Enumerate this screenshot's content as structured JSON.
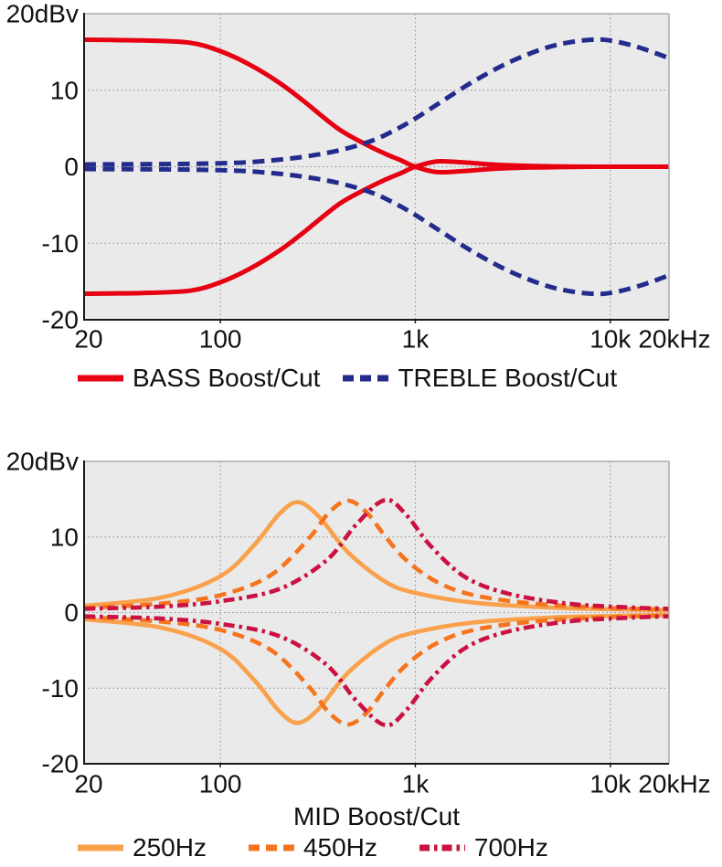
{
  "figure": {
    "description": "Tone control frequency response curves (EQ boost/cut vs frequency)"
  },
  "colors": {
    "bass_red": "#E60012",
    "treble_navy": "#232C8C",
    "mid_250_orange": "#F9A14B",
    "mid_450_orange": "#F5741D",
    "mid_700_crimson": "#CB1141",
    "plot_background": "#EAEAEA",
    "gridline": "#8C8C8C",
    "spine_dark": "#1A1A1A",
    "spine_light": "#ABABAB",
    "text": "#111111"
  },
  "chart_data": [
    {
      "type": "line",
      "title": "",
      "xlabel": "",
      "ylabel": "dBv",
      "x_scale": "log",
      "xlim": [
        20,
        20000
      ],
      "ylim": [
        -20,
        20
      ],
      "grid": true,
      "y_ticks": [
        {
          "value": 20,
          "label": "20dBv"
        },
        {
          "value": 10,
          "label": "10"
        },
        {
          "value": 0,
          "label": "0"
        },
        {
          "value": -10,
          "label": "-10"
        },
        {
          "value": -20,
          "label": "-20"
        }
      ],
      "x_ticks": [
        {
          "value": 20,
          "label": "20"
        },
        {
          "value": 100,
          "label": "100"
        },
        {
          "value": 1000,
          "label": "1k"
        },
        {
          "value": 10000,
          "label": "10k"
        },
        {
          "value": 20000,
          "label": "20kHz"
        }
      ],
      "y_gridlines": [
        10,
        0,
        -10
      ],
      "x_gridlines": [
        100,
        1000,
        10000
      ],
      "legend": [
        {
          "label": "BASS Boost/Cut",
          "color": "#E60012",
          "line_style": "solid"
        },
        {
          "label": "TREBLE Boost/Cut",
          "color": "#232C8C",
          "line_style": "dashed"
        }
      ],
      "series": [
        {
          "name": "bass-boost",
          "color": "#E60012",
          "line_style": "solid",
          "width": 5,
          "points": [
            [
              20,
              16.6
            ],
            [
              40,
              16.5
            ],
            [
              70,
              16.2
            ],
            [
              100,
              15.1
            ],
            [
              140,
              13.4
            ],
            [
              200,
              11.0
            ],
            [
              270,
              8.5
            ],
            [
              400,
              5.0
            ],
            [
              550,
              3.0
            ],
            [
              700,
              1.7
            ],
            [
              850,
              0.8
            ],
            [
              1000,
              0
            ],
            [
              1300,
              -0.7
            ],
            [
              1800,
              -0.55
            ],
            [
              2600,
              -0.25
            ],
            [
              4000,
              -0.1
            ],
            [
              8000,
              0
            ],
            [
              20000,
              0
            ]
          ]
        },
        {
          "name": "bass-cut",
          "color": "#E60012",
          "line_style": "solid",
          "width": 5,
          "points": [
            [
              20,
              -16.6
            ],
            [
              40,
              -16.5
            ],
            [
              70,
              -16.2
            ],
            [
              100,
              -15.1
            ],
            [
              140,
              -13.4
            ],
            [
              200,
              -11.0
            ],
            [
              270,
              -8.5
            ],
            [
              400,
              -5.0
            ],
            [
              550,
              -3.0
            ],
            [
              700,
              -1.7
            ],
            [
              850,
              -0.8
            ],
            [
              1000,
              0
            ],
            [
              1300,
              0.7
            ],
            [
              1800,
              0.55
            ],
            [
              2600,
              0.25
            ],
            [
              4000,
              0.1
            ],
            [
              8000,
              0
            ],
            [
              20000,
              0
            ]
          ]
        },
        {
          "name": "treble-boost",
          "color": "#232C8C",
          "line_style": "dashed",
          "width": 5,
          "points": [
            [
              20,
              0.3
            ],
            [
              50,
              0.35
            ],
            [
              100,
              0.45
            ],
            [
              150,
              0.65
            ],
            [
              250,
              1.2
            ],
            [
              400,
              2.1
            ],
            [
              600,
              3.4
            ],
            [
              800,
              4.9
            ],
            [
              1000,
              6.3
            ],
            [
              1400,
              8.7
            ],
            [
              2000,
              11.2
            ],
            [
              3000,
              13.6
            ],
            [
              4500,
              15.4
            ],
            [
              6000,
              16.2
            ],
            [
              8000,
              16.6
            ],
            [
              10000,
              16.5
            ],
            [
              14000,
              15.6
            ],
            [
              20000,
              14.2
            ]
          ]
        },
        {
          "name": "treble-cut",
          "color": "#232C8C",
          "line_style": "dashed",
          "width": 5,
          "points": [
            [
              20,
              -0.3
            ],
            [
              50,
              -0.35
            ],
            [
              100,
              -0.45
            ],
            [
              150,
              -0.65
            ],
            [
              250,
              -1.2
            ],
            [
              400,
              -2.1
            ],
            [
              600,
              -3.4
            ],
            [
              800,
              -4.9
            ],
            [
              1000,
              -6.3
            ],
            [
              1400,
              -8.7
            ],
            [
              2000,
              -11.2
            ],
            [
              3000,
              -13.6
            ],
            [
              4500,
              -15.4
            ],
            [
              6000,
              -16.2
            ],
            [
              8000,
              -16.6
            ],
            [
              10000,
              -16.5
            ],
            [
              14000,
              -15.6
            ],
            [
              20000,
              -14.2
            ]
          ]
        }
      ]
    },
    {
      "type": "line",
      "title": "",
      "xlabel": "MID Boost/Cut",
      "ylabel": "dBv",
      "x_scale": "log",
      "xlim": [
        20,
        20000
      ],
      "ylim": [
        -20,
        20
      ],
      "grid": true,
      "y_ticks": [
        {
          "value": 20,
          "label": "20dBv"
        },
        {
          "value": 10,
          "label": "10"
        },
        {
          "value": 0,
          "label": "0"
        },
        {
          "value": -10,
          "label": "-10"
        },
        {
          "value": -20,
          "label": "-20"
        }
      ],
      "x_ticks": [
        {
          "value": 20,
          "label": "20"
        },
        {
          "value": 100,
          "label": "100"
        },
        {
          "value": 1000,
          "label": "1k"
        },
        {
          "value": 10000,
          "label": "10k"
        },
        {
          "value": 20000,
          "label": "20kHz"
        }
      ],
      "y_gridlines": [
        10,
        0,
        -10
      ],
      "x_gridlines": [
        100,
        1000,
        10000
      ],
      "legend": [
        {
          "label": "250Hz",
          "color": "#F9A14B",
          "line_style": "solid"
        },
        {
          "label": "450Hz",
          "color": "#F5741D",
          "line_style": "dashed"
        },
        {
          "label": "700Hz",
          "color": "#CB1141",
          "line_style": "dashdot"
        }
      ],
      "series": [
        {
          "name": "mid-250-boost",
          "color": "#F9A14B",
          "line_style": "solid",
          "width": 4.6,
          "points": [
            [
              20,
              0.9
            ],
            [
              50,
              2.0
            ],
            [
              100,
              4.8
            ],
            [
              150,
              9.0
            ],
            [
              200,
              13.0
            ],
            [
              250,
              14.6
            ],
            [
              320,
              12.7
            ],
            [
              450,
              8.0
            ],
            [
              700,
              4.1
            ],
            [
              1000,
              2.6
            ],
            [
              2000,
              1.3
            ],
            [
              5000,
              0.65
            ],
            [
              10000,
              0.45
            ],
            [
              20000,
              0.3
            ]
          ]
        },
        {
          "name": "mid-250-cut",
          "color": "#F9A14B",
          "line_style": "solid",
          "width": 4.6,
          "points": [
            [
              20,
              -0.9
            ],
            [
              50,
              -2.0
            ],
            [
              100,
              -4.8
            ],
            [
              150,
              -9.0
            ],
            [
              200,
              -13.0
            ],
            [
              250,
              -14.6
            ],
            [
              320,
              -12.7
            ],
            [
              450,
              -8.0
            ],
            [
              700,
              -4.1
            ],
            [
              1000,
              -2.6
            ],
            [
              2000,
              -1.3
            ],
            [
              5000,
              -0.65
            ],
            [
              10000,
              -0.45
            ],
            [
              20000,
              -0.3
            ]
          ]
        },
        {
          "name": "mid-450-boost",
          "color": "#F5741D",
          "line_style": "dashed",
          "width": 4.6,
          "points": [
            [
              20,
              0.6
            ],
            [
              50,
              1.2
            ],
            [
              100,
              2.3
            ],
            [
              180,
              4.9
            ],
            [
              280,
              9.6
            ],
            [
              360,
              13.2
            ],
            [
              450,
              14.8
            ],
            [
              560,
              13.3
            ],
            [
              700,
              10.1
            ],
            [
              900,
              6.9
            ],
            [
              1300,
              4.0
            ],
            [
              2000,
              2.3
            ],
            [
              4000,
              1.2
            ],
            [
              10000,
              0.6
            ],
            [
              20000,
              0.4
            ]
          ]
        },
        {
          "name": "mid-450-cut",
          "color": "#F5741D",
          "line_style": "dashed",
          "width": 4.6,
          "points": [
            [
              20,
              -0.6
            ],
            [
              50,
              -1.2
            ],
            [
              100,
              -2.3
            ],
            [
              180,
              -4.9
            ],
            [
              280,
              -9.6
            ],
            [
              360,
              -13.2
            ],
            [
              450,
              -14.8
            ],
            [
              560,
              -13.3
            ],
            [
              700,
              -10.1
            ],
            [
              900,
              -6.9
            ],
            [
              1300,
              -4.0
            ],
            [
              2000,
              -2.3
            ],
            [
              4000,
              -1.2
            ],
            [
              10000,
              -0.6
            ],
            [
              20000,
              -0.4
            ]
          ]
        },
        {
          "name": "mid-700-boost",
          "color": "#CB1141",
          "line_style": "dashdot",
          "width": 4.6,
          "points": [
            [
              20,
              0.5
            ],
            [
              50,
              0.8
            ],
            [
              100,
              1.5
            ],
            [
              200,
              3.1
            ],
            [
              350,
              6.9
            ],
            [
              500,
              11.7
            ],
            [
              700,
              14.9
            ],
            [
              900,
              12.9
            ],
            [
              1200,
              8.8
            ],
            [
              1800,
              4.7
            ],
            [
              3000,
              2.5
            ],
            [
              6000,
              1.2
            ],
            [
              12000,
              0.7
            ],
            [
              20000,
              0.5
            ]
          ]
        },
        {
          "name": "mid-700-cut",
          "color": "#CB1141",
          "line_style": "dashdot",
          "width": 4.6,
          "points": [
            [
              20,
              -0.5
            ],
            [
              50,
              -0.8
            ],
            [
              100,
              -1.5
            ],
            [
              200,
              -3.1
            ],
            [
              350,
              -6.9
            ],
            [
              500,
              -11.7
            ],
            [
              700,
              -14.9
            ],
            [
              900,
              -12.9
            ],
            [
              1200,
              -8.8
            ],
            [
              1800,
              -4.7
            ],
            [
              3000,
              -2.5
            ],
            [
              6000,
              -1.2
            ],
            [
              12000,
              -0.7
            ],
            [
              20000,
              -0.5
            ]
          ]
        }
      ]
    }
  ]
}
